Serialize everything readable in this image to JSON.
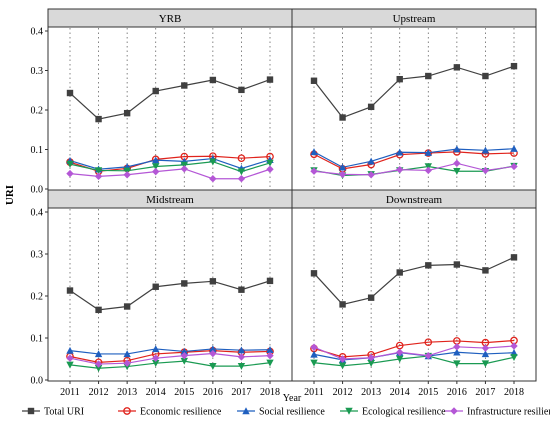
{
  "chart_data": {
    "type": "line",
    "xlabel": "Year",
    "ylabel": "URI",
    "ylim": [
      0,
      0.4
    ],
    "yticks": [
      "0.0",
      "0.1",
      "0.2",
      "0.3",
      "0.4"
    ],
    "x": [
      "2011",
      "2012",
      "2013",
      "2014",
      "2015",
      "2016",
      "2017",
      "2018"
    ],
    "grid": "vertical dotted at each year",
    "legend": {
      "position": "bottom",
      "items": [
        {
          "name": "Total URI",
          "color": "#404040",
          "marker": "square"
        },
        {
          "name": "Economic resilience",
          "color": "#e0231c",
          "marker": "circle"
        },
        {
          "name": "Social resilience",
          "color": "#1f5fbf",
          "marker": "triangle-up"
        },
        {
          "name": "Ecological resilience",
          "color": "#1a9a52",
          "marker": "triangle-down"
        },
        {
          "name": "Infrastructure resilience",
          "color": "#b457d6",
          "marker": "diamond"
        }
      ]
    },
    "panels": [
      {
        "title": "YRB",
        "series": [
          {
            "name": "Total URI",
            "values": [
              0.243,
              0.177,
              0.192,
              0.248,
              0.262,
              0.276,
              0.251,
              0.277
            ]
          },
          {
            "name": "Economic resilience",
            "values": [
              0.068,
              0.045,
              0.052,
              0.075,
              0.082,
              0.083,
              0.078,
              0.082
            ]
          },
          {
            "name": "Social resilience",
            "values": [
              0.072,
              0.05,
              0.056,
              0.073,
              0.07,
              0.077,
              0.052,
              0.074
            ]
          },
          {
            "name": "Ecological resilience",
            "values": [
              0.063,
              0.047,
              0.046,
              0.057,
              0.061,
              0.069,
              0.044,
              0.066
            ]
          },
          {
            "name": "Infrastructure resilience",
            "values": [
              0.039,
              0.032,
              0.036,
              0.044,
              0.051,
              0.026,
              0.026,
              0.05
            ]
          }
        ]
      },
      {
        "title": "Upstream",
        "series": [
          {
            "name": "Total URI",
            "values": [
              0.274,
              0.181,
              0.208,
              0.278,
              0.286,
              0.308,
              0.286,
              0.311
            ]
          },
          {
            "name": "Economic resilience",
            "values": [
              0.088,
              0.051,
              0.062,
              0.087,
              0.091,
              0.094,
              0.089,
              0.091
            ]
          },
          {
            "name": "Social resilience",
            "values": [
              0.094,
              0.055,
              0.07,
              0.093,
              0.092,
              0.101,
              0.098,
              0.102
            ]
          },
          {
            "name": "Ecological resilience",
            "values": [
              0.047,
              0.034,
              0.037,
              0.047,
              0.057,
              0.045,
              0.045,
              0.058
            ]
          },
          {
            "name": "Infrastructure resilience",
            "values": [
              0.045,
              0.037,
              0.036,
              0.049,
              0.047,
              0.065,
              0.047,
              0.057
            ]
          }
        ]
      },
      {
        "title": "Midstream",
        "series": [
          {
            "name": "Total URI",
            "values": [
              0.213,
              0.167,
              0.175,
              0.222,
              0.23,
              0.235,
              0.215,
              0.236
            ]
          },
          {
            "name": "Economic resilience",
            "values": [
              0.056,
              0.042,
              0.046,
              0.062,
              0.066,
              0.07,
              0.066,
              0.068
            ]
          },
          {
            "name": "Social resilience",
            "values": [
              0.07,
              0.062,
              0.062,
              0.074,
              0.068,
              0.074,
              0.071,
              0.072
            ]
          },
          {
            "name": "Ecological resilience",
            "values": [
              0.036,
              0.028,
              0.032,
              0.04,
              0.045,
              0.033,
              0.033,
              0.041
            ]
          },
          {
            "name": "Infrastructure resilience",
            "values": [
              0.052,
              0.038,
              0.04,
              0.052,
              0.058,
              0.063,
              0.055,
              0.058
            ]
          }
        ]
      },
      {
        "title": "Downstream",
        "series": [
          {
            "name": "Total URI",
            "values": [
              0.254,
              0.18,
              0.196,
              0.256,
              0.273,
              0.275,
              0.261,
              0.292
            ]
          },
          {
            "name": "Economic resilience",
            "values": [
              0.075,
              0.055,
              0.06,
              0.082,
              0.09,
              0.093,
              0.089,
              0.094
            ]
          },
          {
            "name": "Social resilience",
            "values": [
              0.061,
              0.048,
              0.053,
              0.065,
              0.057,
              0.066,
              0.062,
              0.065
            ]
          },
          {
            "name": "Ecological resilience",
            "values": [
              0.041,
              0.034,
              0.04,
              0.05,
              0.057,
              0.039,
              0.039,
              0.054
            ]
          },
          {
            "name": "Infrastructure resilience",
            "values": [
              0.078,
              0.05,
              0.053,
              0.066,
              0.058,
              0.079,
              0.076,
              0.081
            ]
          }
        ]
      }
    ]
  }
}
